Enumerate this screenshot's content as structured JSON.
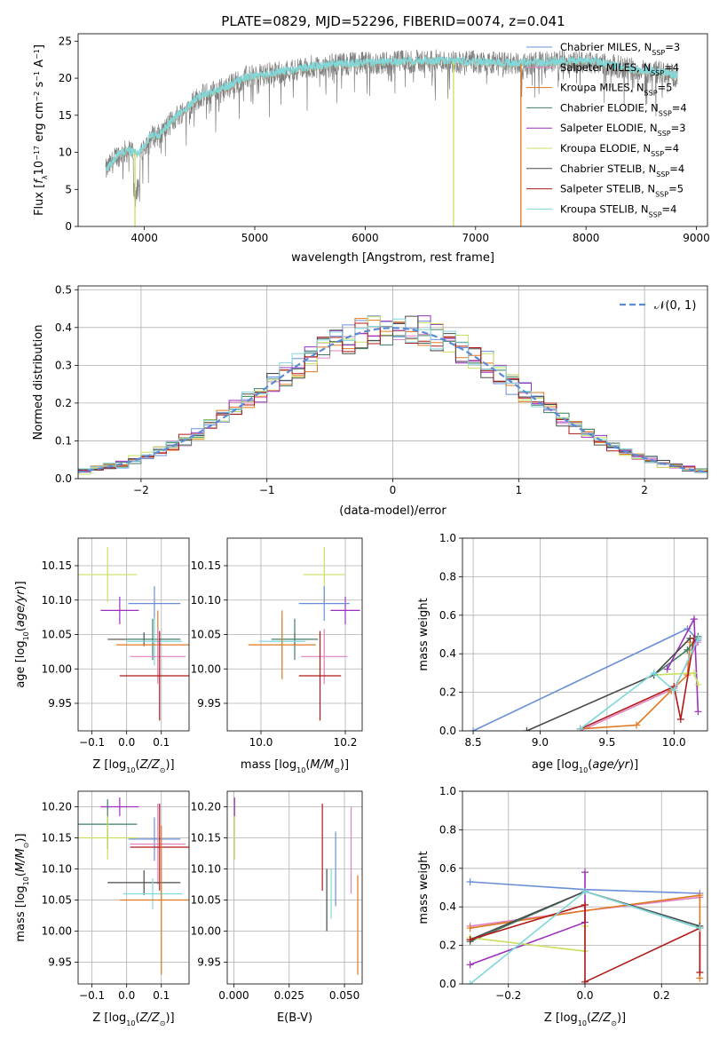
{
  "title": "PLATE=0829, MJD=52296, FIBERID=0074, z=0.041",
  "colors": {
    "Chabrier MILES": "#6a8fd8",
    "Salpeter MILES": "#e082c0",
    "Kroupa MILES": "#e07820",
    "Chabrier ELODIE": "#3f7f60",
    "Salpeter ELODIE": "#9d2fbd",
    "Kroupa ELODIE": "#c8e060",
    "Chabrier STELIB": "#4a4a4a",
    "Salpeter STELIB": "#b01818",
    "Kroupa STELIB": "#7fd8dc",
    "spectrum": "#7f7f7f"
  },
  "chart_data": [
    {
      "id": "spectrum",
      "type": "line",
      "xlabel": "wavelength [Angstrom, rest frame]",
      "ylabel": "Flux [f_λ10^-17 erg cm^-2 s^-1 A^-1]",
      "xlim": [
        3400,
        9100
      ],
      "ylim": [
        0,
        26
      ],
      "xticks": [
        4000,
        5000,
        6000,
        7000,
        8000,
        9000
      ],
      "yticks": [
        0,
        5,
        10,
        15,
        20,
        25
      ],
      "legend_position": "top-right",
      "legend": [
        {
          "name": "Chabrier MILES",
          "nssp": "3"
        },
        {
          "name": "Salpeter MILES",
          "nssp": "4"
        },
        {
          "name": "Kroupa MILES",
          "nssp": "5"
        },
        {
          "name": "Chabrier ELODIE",
          "nssp": "4"
        },
        {
          "name": "Salpeter ELODIE",
          "nssp": "3"
        },
        {
          "name": "Kroupa ELODIE",
          "nssp": "4"
        },
        {
          "name": "Chabrier STELIB",
          "nssp": "4"
        },
        {
          "name": "Salpeter STELIB",
          "nssp": "5"
        },
        {
          "name": "Kroupa STELIB",
          "nssp": "4"
        }
      ],
      "continuum": {
        "x": [
          3650,
          3750,
          3850,
          3950,
          4050,
          4150,
          4300,
          4500,
          4700,
          4900,
          5100,
          5300,
          5500,
          5700,
          5900,
          6100,
          6300,
          6500,
          6700,
          6900,
          7100,
          7300,
          7500,
          7700,
          7900,
          8100,
          8300,
          8500,
          8700,
          8830
        ],
        "y": [
          7.5,
          9.5,
          10.2,
          9.8,
          12.0,
          12.5,
          15.0,
          17.5,
          18.5,
          20.0,
          20.5,
          21.0,
          21.5,
          21.8,
          22.0,
          22.0,
          22.2,
          22.3,
          22.3,
          22.2,
          22.1,
          22.0,
          22.0,
          22.2,
          22.3,
          22.2,
          21.5,
          21.0,
          20.8,
          20.2
        ]
      },
      "model_drops": [
        {
          "name": "Kroupa ELODIE",
          "x": 3915,
          "note": "drops to 0 at blue edge"
        },
        {
          "name": "Kroupa ELODIE",
          "x": 6800,
          "note": "drops to 0"
        },
        {
          "name": "Kroupa MILES",
          "x": 7410,
          "note": "drops to 0"
        }
      ]
    },
    {
      "id": "residuals",
      "type": "histogram",
      "xlabel": "(data-model)/error",
      "ylabel": "Normed distribution",
      "xlim": [
        -2.5,
        2.5
      ],
      "ylim": [
        0,
        0.51
      ],
      "xticks": [
        -2,
        -1,
        0,
        1,
        2
      ],
      "yticks": [
        0.0,
        0.1,
        0.2,
        0.3,
        0.4,
        0.5
      ],
      "bin_width": 0.1,
      "grid": true,
      "legend_position": "top-right",
      "reference": {
        "label": "𝒩(0, 1)",
        "mean": 0,
        "sigma": 1
      }
    },
    {
      "id": "Z-age",
      "type": "errorbar",
      "xlabel": "Z [log10(Z/Z⊙)]",
      "ylabel": "age  [log10(age/yr)]",
      "xlim": [
        -0.14,
        0.18
      ],
      "ylim": [
        9.91,
        10.19
      ],
      "xticks": [
        -0.1,
        0.0,
        0.1
      ],
      "yticks": [
        9.95,
        10.0,
        10.05,
        10.1,
        10.15
      ],
      "grid": true,
      "points": [
        {
          "model": "Kroupa ELODIE",
          "x": -0.055,
          "y": 10.137,
          "xerr": 0.085,
          "yerr": 0.04
        },
        {
          "model": "Salpeter ELODIE",
          "x": -0.02,
          "y": 10.085,
          "xerr": 0.055,
          "yerr": 0.02
        },
        {
          "model": "Chabrier MILES",
          "x": 0.08,
          "y": 10.095,
          "xerr": 0.075,
          "yerr": 0.025
        },
        {
          "model": "Chabrier STELIB",
          "x": 0.05,
          "y": 10.043,
          "xerr": 0.105,
          "yerr": 0.01
        },
        {
          "model": "Chabrier ELODIE",
          "x": 0.075,
          "y": 10.043,
          "xerr": 0.08,
          "yerr": 0.03
        },
        {
          "model": "Kroupa STELIB",
          "x": 0.08,
          "y": 10.04,
          "xerr": 0.08,
          "yerr": 0.035
        },
        {
          "model": "Kroupa MILES",
          "x": 0.09,
          "y": 10.035,
          "xerr": 0.12,
          "yerr": 0.05
        },
        {
          "model": "Salpeter MILES",
          "x": 0.09,
          "y": 10.018,
          "xerr": 0.08,
          "yerr": 0.04
        },
        {
          "model": "Salpeter STELIB",
          "x": 0.095,
          "y": 9.99,
          "xerr": 0.115,
          "yerr": 0.065
        }
      ]
    },
    {
      "id": "mass-age",
      "type": "errorbar",
      "xlabel": "mass [log10(M/M⊙)]",
      "ylabel": "",
      "xlim": [
        9.92,
        10.24
      ],
      "ylim": [
        9.91,
        10.19
      ],
      "xticks": [
        10.0,
        10.2
      ],
      "yticks": [
        9.95,
        10.0,
        10.05,
        10.1,
        10.15
      ],
      "grid": true,
      "points": [
        {
          "model": "Kroupa ELODIE",
          "x": 10.15,
          "y": 10.137,
          "xerr": 0.05,
          "yerr": 0.04
        },
        {
          "model": "Salpeter ELODIE",
          "x": 10.2,
          "y": 10.085,
          "xerr": 0.035,
          "yerr": 0.02
        },
        {
          "model": "Chabrier MILES",
          "x": 10.15,
          "y": 10.095,
          "xerr": 0.06,
          "yerr": 0.025
        },
        {
          "model": "Chabrier STELIB",
          "x": 10.08,
          "y": 10.043,
          "xerr": 0.055,
          "yerr": 0.01
        },
        {
          "model": "Chabrier ELODIE",
          "x": 10.08,
          "y": 10.043,
          "xerr": 0.055,
          "yerr": 0.03
        },
        {
          "model": "Kroupa STELIB",
          "x": 10.05,
          "y": 10.04,
          "xerr": 0.055,
          "yerr": 0.035
        },
        {
          "model": "Kroupa MILES",
          "x": 10.05,
          "y": 10.035,
          "xerr": 0.08,
          "yerr": 0.05
        },
        {
          "model": "Salpeter MILES",
          "x": 10.15,
          "y": 10.018,
          "xerr": 0.055,
          "yerr": 0.04
        },
        {
          "model": "Salpeter STELIB",
          "x": 10.14,
          "y": 9.99,
          "xerr": 0.05,
          "yerr": 0.065
        }
      ]
    },
    {
      "id": "age-weight",
      "type": "line",
      "xlabel": "age  [log10(age/yr)]",
      "ylabel": "mass weight",
      "xlim": [
        8.42,
        10.25
      ],
      "ylim": [
        0,
        1.0
      ],
      "xticks": [
        8.5,
        9.0,
        9.5,
        10.0
      ],
      "yticks": [
        0.0,
        0.2,
        0.4,
        0.6,
        0.8,
        1.0
      ],
      "grid": true,
      "series": [
        {
          "model": "Chabrier MILES",
          "x": [
            8.5,
            10.1,
            10.18
          ],
          "y": [
            0.0,
            0.53,
            0.47
          ]
        },
        {
          "model": "Salpeter MILES",
          "x": [
            9.3,
            10.0,
            10.18
          ],
          "y": [
            0.0,
            0.22,
            0.46
          ]
        },
        {
          "model": "Kroupa MILES",
          "x": [
            9.3,
            9.72,
            9.98,
            10.1,
            10.12
          ],
          "y": [
            0.01,
            0.03,
            0.21,
            0.29,
            0.46
          ]
        },
        {
          "model": "Chabrier ELODIE",
          "x": [
            9.85,
            10.1,
            10.18
          ],
          "y": [
            0.29,
            0.42,
            0.49
          ]
        },
        {
          "model": "Salpeter ELODIE",
          "x": [
            9.95,
            10.15,
            10.18
          ],
          "y": [
            0.32,
            0.58,
            0.1
          ]
        },
        {
          "model": "Kroupa ELODIE",
          "x": [
            9.85,
            10.15,
            10.18
          ],
          "y": [
            0.29,
            0.3,
            0.24
          ]
        },
        {
          "model": "Chabrier STELIB",
          "x": [
            8.9,
            9.85,
            10.12,
            10.18
          ],
          "y": [
            0.0,
            0.29,
            0.48,
            0.48
          ]
        },
        {
          "model": "Salpeter STELIB",
          "x": [
            9.3,
            10.0,
            10.05,
            10.15
          ],
          "y": [
            0.01,
            0.23,
            0.06,
            0.48
          ]
        },
        {
          "model": "Kroupa STELIB",
          "x": [
            9.3,
            9.85,
            10.0,
            10.18
          ],
          "y": [
            0.01,
            0.3,
            0.21,
            0.48
          ]
        }
      ]
    },
    {
      "id": "Z-mass",
      "type": "errorbar",
      "xlabel": "Z [log10(Z/Z⊙)]",
      "ylabel": "mass [log10(M/M⊙)]",
      "xlim": [
        -0.14,
        0.18
      ],
      "ylim": [
        9.915,
        10.225
      ],
      "xticks": [
        -0.1,
        0.0,
        0.1
      ],
      "yticks": [
        9.95,
        10.0,
        10.05,
        10.1,
        10.15,
        10.2
      ],
      "grid": true,
      "points": [
        {
          "model": "Salpeter ELODIE",
          "x": -0.02,
          "y": 10.2,
          "xerr": 0.055,
          "yerr": 0.015
        },
        {
          "model": "Chabrier ELODIE",
          "x": -0.055,
          "y": 10.172,
          "xerr": 0.085,
          "yerr": 0.04
        },
        {
          "model": "Kroupa ELODIE",
          "x": -0.055,
          "y": 10.15,
          "xerr": 0.085,
          "yerr": 0.035
        },
        {
          "model": "Chabrier MILES",
          "x": 0.08,
          "y": 10.148,
          "xerr": 0.075,
          "yerr": 0.035
        },
        {
          "model": "Salpeter MILES",
          "x": 0.09,
          "y": 10.14,
          "xerr": 0.08,
          "yerr": 0.065
        },
        {
          "model": "Salpeter STELIB",
          "x": 0.095,
          "y": 10.135,
          "xerr": 0.085,
          "yerr": 0.07
        },
        {
          "model": "Chabrier STELIB",
          "x": 0.05,
          "y": 10.078,
          "xerr": 0.105,
          "yerr": 0.02
        },
        {
          "model": "Kroupa STELIB",
          "x": 0.075,
          "y": 10.06,
          "xerr": 0.085,
          "yerr": 0.025
        },
        {
          "model": "Kroupa MILES",
          "x": 0.1,
          "y": 10.05,
          "xerr": 0.12,
          "yerr": 0.12
        }
      ]
    },
    {
      "id": "ebv-mass",
      "type": "errorbar",
      "xlabel": "E(B-V)",
      "ylabel": "",
      "xlim": [
        -0.003,
        0.058
      ],
      "ylim": [
        9.915,
        10.225
      ],
      "xticks": [
        0.0,
        0.025,
        0.05
      ],
      "xtick_labels": [
        "0.000",
        "0.025",
        "0.050"
      ],
      "yticks": [
        9.95,
        10.0,
        10.05,
        10.1,
        10.15,
        10.2
      ],
      "grid": true,
      "points": [
        {
          "model": "Salpeter ELODIE",
          "x": 0.0003,
          "y": 10.2,
          "yerr": 0.015
        },
        {
          "model": "Kroupa ELODIE",
          "x": 0.0003,
          "y": 10.15,
          "yerr": 0.035
        },
        {
          "model": "Salpeter STELIB",
          "x": 0.04,
          "y": 10.135,
          "yerr": 0.07
        },
        {
          "model": "Chabrier STELIB",
          "x": 0.042,
          "y": 10.05,
          "yerr": 0.05
        },
        {
          "model": "Kroupa STELIB",
          "x": 0.044,
          "y": 10.06,
          "yerr": 0.04
        },
        {
          "model": "Chabrier MILES",
          "x": 0.046,
          "y": 10.1,
          "yerr": 0.06
        },
        {
          "model": "Salpeter MILES",
          "x": 0.053,
          "y": 10.13,
          "yerr": 0.07
        },
        {
          "model": "Kroupa MILES",
          "x": 0.056,
          "y": 10.01,
          "yerr": 0.08
        }
      ]
    },
    {
      "id": "Z-weight",
      "type": "line",
      "xlabel": "Z [log10(Z/Z⊙)]",
      "ylabel": "mass weight",
      "xlim": [
        -0.32,
        0.32
      ],
      "ylim": [
        0,
        1.0
      ],
      "xticks": [
        -0.2,
        0.0,
        0.2
      ],
      "yticks": [
        0.0,
        0.2,
        0.4,
        0.6,
        0.8,
        1.0
      ],
      "grid": true,
      "series": [
        {
          "model": "Chabrier MILES",
          "x": [
            -0.3,
            0.0,
            0.3
          ],
          "y": [
            0.53,
            0.49,
            0.47
          ]
        },
        {
          "model": "Salpeter MILES",
          "x": [
            -0.3,
            0.0,
            0.3
          ],
          "y": [
            0.3,
            0.38,
            0.45
          ]
        },
        {
          "model": "Kroupa MILES",
          "x": [
            -0.3,
            0.0,
            0.3,
            0.3
          ],
          "y": [
            0.29,
            0.38,
            0.46,
            0.03
          ]
        },
        {
          "model": "Chabrier ELODIE",
          "x": [
            -0.3,
            0.0,
            0.3
          ],
          "y": [
            0.22,
            0.48,
            0.29
          ]
        },
        {
          "model": "Salpeter ELODIE",
          "x": [
            -0.3,
            0.0,
            0.0
          ],
          "y": [
            0.1,
            0.32,
            0.58
          ]
        },
        {
          "model": "Kroupa ELODIE",
          "x": [
            -0.3,
            0.0,
            0.0
          ],
          "y": [
            0.24,
            0.17,
            0.3
          ]
        },
        {
          "model": "Chabrier STELIB",
          "x": [
            -0.3,
            0.0,
            0.3
          ],
          "y": [
            0.23,
            0.48,
            0.3
          ]
        },
        {
          "model": "Salpeter STELIB",
          "x": [
            -0.3,
            0.0,
            0.0,
            0.3,
            0.3
          ],
          "y": [
            0.23,
            0.41,
            0.01,
            0.29,
            0.06
          ]
        },
        {
          "model": "Kroupa STELIB",
          "x": [
            -0.3,
            0.0,
            0.3
          ],
          "y": [
            0.0,
            0.48,
            0.29
          ]
        }
      ]
    }
  ]
}
